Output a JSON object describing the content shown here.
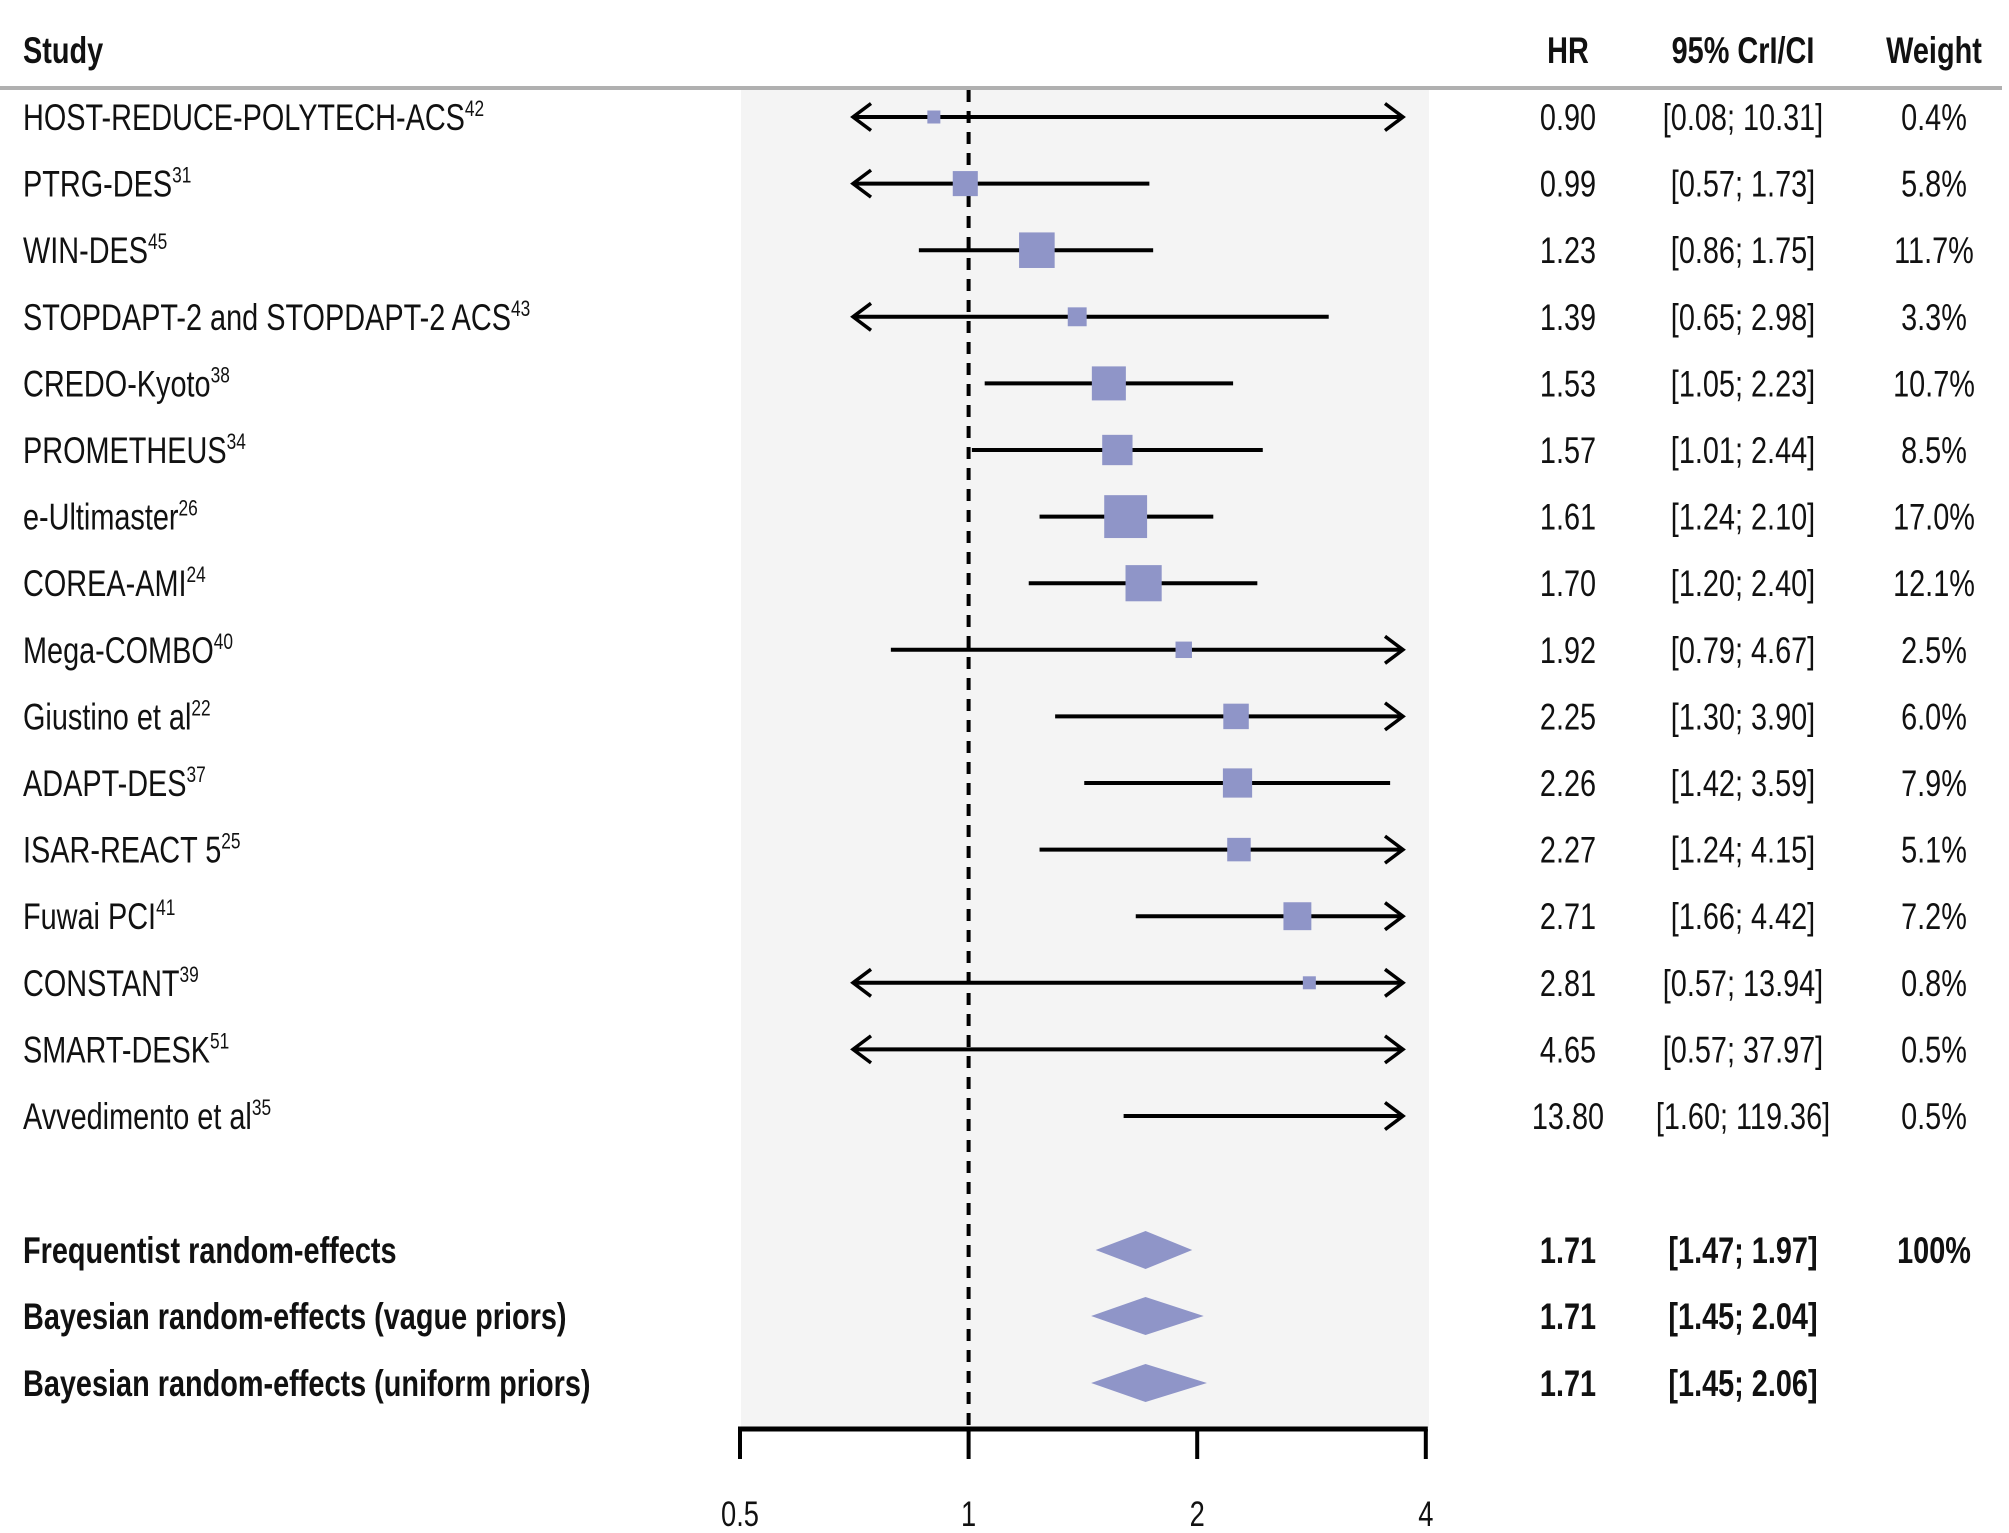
{
  "chart_data": {
    "type": "forest",
    "title": "",
    "xlabel": "",
    "x_scale": "log2",
    "xlim": [
      0.5,
      4
    ],
    "x_ticks": [
      0.5,
      1,
      2,
      4
    ],
    "x_tick_labels": [
      "0.5",
      "1",
      "2",
      "4"
    ],
    "reference_line": 1,
    "columns": {
      "study": "Study",
      "hr": "HR",
      "ci": "95% CrI/CI",
      "weight": "Weight"
    },
    "studies": [
      {
        "name": "HOST-REDUCE-POLYTECH-ACS",
        "ref": "42",
        "hr": 0.9,
        "lower": 0.08,
        "upper": 10.31,
        "hr_label": "0.90",
        "ci_label": "[0.08; 10.31]",
        "weight": 0.4,
        "weight_label": "0.4%"
      },
      {
        "name": "PTRG-DES",
        "ref": "31",
        "hr": 0.99,
        "lower": 0.57,
        "upper": 1.73,
        "hr_label": "0.99",
        "ci_label": "[0.57; 1.73]",
        "weight": 5.8,
        "weight_label": "5.8%"
      },
      {
        "name": "WIN-DES",
        "ref": "45",
        "hr": 1.23,
        "lower": 0.86,
        "upper": 1.75,
        "hr_label": "1.23",
        "ci_label": "[0.86; 1.75]",
        "weight": 11.7,
        "weight_label": "11.7%"
      },
      {
        "name": "STOPDAPT-2 and STOPDAPT-2 ACS",
        "ref": "43",
        "hr": 1.39,
        "lower": 0.65,
        "upper": 2.98,
        "hr_label": "1.39",
        "ci_label": "[0.65; 2.98]",
        "weight": 3.3,
        "weight_label": "3.3%"
      },
      {
        "name": "CREDO-Kyoto",
        "ref": "38",
        "hr": 1.53,
        "lower": 1.05,
        "upper": 2.23,
        "hr_label": "1.53",
        "ci_label": "[1.05; 2.23]",
        "weight": 10.7,
        "weight_label": "10.7%"
      },
      {
        "name": "PROMETHEUS",
        "ref": "34",
        "hr": 1.57,
        "lower": 1.01,
        "upper": 2.44,
        "hr_label": "1.57",
        "ci_label": "[1.01; 2.44]",
        "weight": 8.5,
        "weight_label": "8.5%"
      },
      {
        "name": "e-Ultimaster",
        "ref": "26",
        "hr": 1.61,
        "lower": 1.24,
        "upper": 2.1,
        "hr_label": "1.61",
        "ci_label": "[1.24; 2.10]",
        "weight": 17.0,
        "weight_label": "17.0%"
      },
      {
        "name": "COREA-AMI",
        "ref": "24",
        "hr": 1.7,
        "lower": 1.2,
        "upper": 2.4,
        "hr_label": "1.70",
        "ci_label": "[1.20; 2.40]",
        "weight": 12.1,
        "weight_label": "12.1%"
      },
      {
        "name": "Mega-COMBO",
        "ref": "40",
        "hr": 1.92,
        "lower": 0.79,
        "upper": 4.67,
        "hr_label": "1.92",
        "ci_label": "[0.79; 4.67]",
        "weight": 2.5,
        "weight_label": "2.5%"
      },
      {
        "name": "Giustino et al",
        "ref": "22",
        "hr": 2.25,
        "lower": 1.3,
        "upper": 3.9,
        "hr_label": "2.25",
        "ci_label": "[1.30; 3.90]",
        "weight": 6.0,
        "weight_label": "6.0%"
      },
      {
        "name": "ADAPT-DES",
        "ref": "37",
        "hr": 2.26,
        "lower": 1.42,
        "upper": 3.59,
        "hr_label": "2.26",
        "ci_label": "[1.42; 3.59]",
        "weight": 7.9,
        "weight_label": "7.9%"
      },
      {
        "name": "ISAR-REACT 5",
        "ref": "25",
        "hr": 2.27,
        "lower": 1.24,
        "upper": 4.15,
        "hr_label": "2.27",
        "ci_label": "[1.24; 4.15]",
        "weight": 5.1,
        "weight_label": "5.1%"
      },
      {
        "name": "Fuwai PCI",
        "ref": "41",
        "hr": 2.71,
        "lower": 1.66,
        "upper": 4.42,
        "hr_label": "2.71",
        "ci_label": "[1.66; 4.42]",
        "weight": 7.2,
        "weight_label": "7.2%"
      },
      {
        "name": "CONSTANT",
        "ref": "39",
        "hr": 2.81,
        "lower": 0.57,
        "upper": 13.94,
        "hr_label": "2.81",
        "ci_label": "[0.57; 13.94]",
        "weight": 0.8,
        "weight_label": "0.8%"
      },
      {
        "name": "SMART-DESK",
        "ref": "51",
        "hr": 4.65,
        "lower": 0.57,
        "upper": 37.97,
        "hr_label": "4.65",
        "ci_label": "[0.57; 37.97]",
        "weight": 0.5,
        "weight_label": "0.5%"
      },
      {
        "name": "Avvedimento et al",
        "ref": "35",
        "hr": 13.8,
        "lower": 1.6,
        "upper": 119.36,
        "hr_label": "13.80",
        "ci_label": "[1.60; 119.36]",
        "weight": 0.5,
        "weight_label": "0.5%"
      }
    ],
    "summaries": [
      {
        "name": "Frequentist random-effects",
        "hr": 1.71,
        "lower": 1.47,
        "upper": 1.97,
        "hr_label": "1.71",
        "ci_label": "[1.47; 1.97]",
        "weight_label": "100%"
      },
      {
        "name": "Bayesian random-effects (vague priors)",
        "hr": 1.71,
        "lower": 1.45,
        "upper": 2.04,
        "hr_label": "1.71",
        "ci_label": "[1.45; 2.04]",
        "weight_label": ""
      },
      {
        "name": "Bayesian random-effects (uniform priors)",
        "hr": 1.71,
        "lower": 1.45,
        "upper": 2.06,
        "hr_label": "1.71",
        "ci_label": "[1.45; 2.06]",
        "weight_label": ""
      }
    ],
    "colors": {
      "marker": "#8f95c8",
      "panel": "#f4f4f4",
      "rule": "#b0b0b0",
      "line": "#000000"
    }
  }
}
